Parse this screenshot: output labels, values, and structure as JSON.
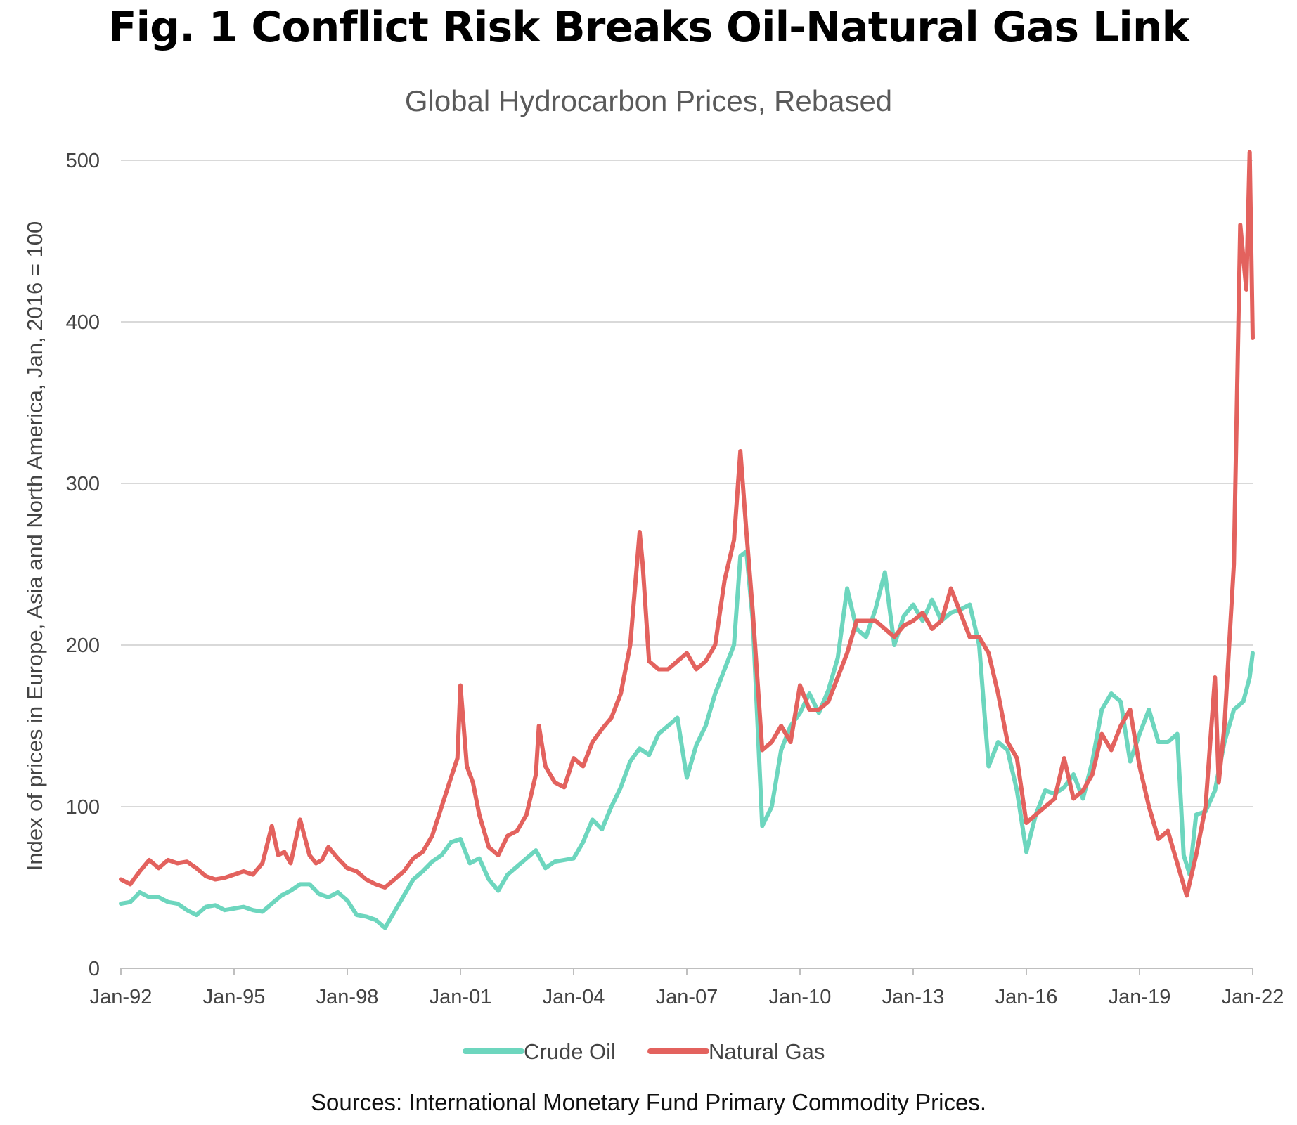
{
  "figure": {
    "title": "Fig. 1 Conflict Risk Breaks Oil-Natural Gas Link",
    "subtitle": "Global Hydrocarbon Prices, Rebased",
    "sources": "Sources: International Monetary Fund Primary Commodity Prices."
  },
  "colors": {
    "crude_oil": "#6dd6be",
    "natural_gas": "#e3625e",
    "grid": "#d9d9d9",
    "axis": "#bfbfbf",
    "text": "#444444"
  },
  "chart_data": {
    "type": "line",
    "title": "Fig. 1 Conflict Risk Breaks Oil-Natural Gas Link",
    "subtitle": "Global Hydrocarbon Prices, Rebased",
    "xlabel": "",
    "ylabel": "Index of prices in Europe, Asia and North America, Jan, 2016 = 100",
    "ylim": [
      0,
      500
    ],
    "xlim": [
      1992.0,
      2022.0
    ],
    "y_ticks": [
      "0",
      "100",
      "200",
      "300",
      "400",
      "500"
    ],
    "x_ticks": [
      "Jan-92",
      "Jan-95",
      "Jan-98",
      "Jan-01",
      "Jan-04",
      "Jan-07",
      "Jan-10",
      "Jan-13",
      "Jan-16",
      "Jan-19",
      "Jan-22"
    ],
    "grid": "horizontal",
    "legend": "bottom",
    "x_unit": "decimal year",
    "series": [
      {
        "name": "Crude Oil",
        "color": "#6dd6be",
        "x": [
          1992.0,
          1992.25,
          1992.5,
          1992.75,
          1993.0,
          1993.25,
          1993.5,
          1993.75,
          1994.0,
          1994.25,
          1994.5,
          1994.75,
          1995.0,
          1995.25,
          1995.5,
          1995.75,
          1996.0,
          1996.25,
          1996.5,
          1996.75,
          1997.0,
          1997.25,
          1997.5,
          1997.75,
          1998.0,
          1998.25,
          1998.5,
          1998.75,
          1999.0,
          1999.25,
          1999.5,
          1999.75,
          2000.0,
          2000.25,
          2000.5,
          2000.75,
          2001.0,
          2001.25,
          2001.5,
          2001.75,
          2002.0,
          2002.25,
          2002.5,
          2002.75,
          2003.0,
          2003.25,
          2003.5,
          2003.75,
          2004.0,
          2004.25,
          2004.5,
          2004.75,
          2005.0,
          2005.25,
          2005.5,
          2005.75,
          2006.0,
          2006.25,
          2006.5,
          2006.75,
          2007.0,
          2007.25,
          2007.5,
          2007.75,
          2008.0,
          2008.25,
          2008.42,
          2008.58,
          2008.75,
          2009.0,
          2009.25,
          2009.5,
          2009.75,
          2010.0,
          2010.25,
          2010.5,
          2010.75,
          2011.0,
          2011.25,
          2011.5,
          2011.75,
          2012.0,
          2012.25,
          2012.5,
          2012.75,
          2013.0,
          2013.25,
          2013.5,
          2013.75,
          2014.0,
          2014.25,
          2014.5,
          2014.75,
          2015.0,
          2015.25,
          2015.5,
          2015.75,
          2016.0,
          2016.25,
          2016.5,
          2016.75,
          2017.0,
          2017.25,
          2017.5,
          2017.75,
          2018.0,
          2018.25,
          2018.5,
          2018.75,
          2019.0,
          2019.25,
          2019.5,
          2019.75,
          2020.0,
          2020.17,
          2020.33,
          2020.5,
          2020.75,
          2021.0,
          2021.25,
          2021.5,
          2021.75,
          2021.92,
          2022.0
        ],
        "values": [
          40,
          41,
          47,
          44,
          44,
          41,
          40,
          36,
          33,
          38,
          39,
          36,
          37,
          38,
          36,
          35,
          40,
          45,
          48,
          52,
          52,
          46,
          44,
          47,
          42,
          33,
          32,
          30,
          25,
          35,
          45,
          55,
          60,
          66,
          70,
          78,
          80,
          65,
          68,
          55,
          48,
          58,
          63,
          68,
          73,
          62,
          66,
          67,
          68,
          78,
          92,
          86,
          100,
          112,
          128,
          136,
          132,
          145,
          150,
          155,
          118,
          138,
          150,
          170,
          185,
          200,
          255,
          258,
          215,
          88,
          100,
          135,
          150,
          158,
          170,
          158,
          172,
          192,
          235,
          210,
          205,
          222,
          245,
          200,
          218,
          225,
          215,
          228,
          215,
          220,
          222,
          225,
          200,
          125,
          140,
          135,
          110,
          72,
          95,
          110,
          108,
          112,
          120,
          105,
          128,
          160,
          170,
          165,
          128,
          145,
          160,
          140,
          140,
          145,
          70,
          58,
          95,
          97,
          110,
          140,
          160,
          165,
          180,
          195
        ]
      },
      {
        "name": "Natural Gas",
        "color": "#e3625e",
        "x": [
          1992.0,
          1992.25,
          1992.5,
          1992.75,
          1993.0,
          1993.25,
          1993.5,
          1993.75,
          1994.0,
          1994.25,
          1994.5,
          1994.75,
          1995.0,
          1995.25,
          1995.5,
          1995.75,
          1996.0,
          1996.17,
          1996.33,
          1996.5,
          1996.75,
          1997.0,
          1997.17,
          1997.33,
          1997.5,
          1997.75,
          1998.0,
          1998.25,
          1998.5,
          1998.75,
          1999.0,
          1999.25,
          1999.5,
          1999.75,
          2000.0,
          2000.25,
          2000.5,
          2000.75,
          2000.92,
          2001.0,
          2001.17,
          2001.33,
          2001.5,
          2001.75,
          2002.0,
          2002.25,
          2002.5,
          2002.75,
          2003.0,
          2003.08,
          2003.25,
          2003.5,
          2003.75,
          2004.0,
          2004.25,
          2004.5,
          2004.75,
          2005.0,
          2005.25,
          2005.5,
          2005.75,
          2005.83,
          2006.0,
          2006.25,
          2006.5,
          2006.75,
          2007.0,
          2007.25,
          2007.5,
          2007.75,
          2008.0,
          2008.25,
          2008.42,
          2008.58,
          2008.75,
          2009.0,
          2009.25,
          2009.5,
          2009.75,
          2010.0,
          2010.25,
          2010.5,
          2010.75,
          2011.0,
          2011.25,
          2011.5,
          2011.75,
          2012.0,
          2012.25,
          2012.5,
          2012.75,
          2013.0,
          2013.25,
          2013.5,
          2013.75,
          2014.0,
          2014.25,
          2014.5,
          2014.75,
          2015.0,
          2015.25,
          2015.5,
          2015.75,
          2016.0,
          2016.25,
          2016.5,
          2016.75,
          2017.0,
          2017.25,
          2017.5,
          2017.75,
          2018.0,
          2018.25,
          2018.5,
          2018.75,
          2019.0,
          2019.25,
          2019.5,
          2019.75,
          2020.0,
          2020.25,
          2020.5,
          2020.75,
          2021.0,
          2021.1,
          2021.25,
          2021.5,
          2021.67,
          2021.83,
          2021.92,
          2022.0
        ],
        "values": [
          55,
          52,
          60,
          67,
          62,
          67,
          65,
          66,
          62,
          57,
          55,
          56,
          58,
          60,
          58,
          65,
          88,
          70,
          72,
          65,
          92,
          70,
          65,
          67,
          75,
          68,
          62,
          60,
          55,
          52,
          50,
          55,
          60,
          68,
          72,
          82,
          100,
          118,
          130,
          175,
          125,
          115,
          95,
          75,
          70,
          82,
          85,
          95,
          120,
          150,
          125,
          115,
          112,
          130,
          125,
          140,
          148,
          155,
          170,
          200,
          270,
          250,
          190,
          185,
          185,
          190,
          195,
          185,
          190,
          200,
          240,
          265,
          320,
          270,
          220,
          135,
          140,
          150,
          140,
          175,
          160,
          160,
          165,
          180,
          195,
          215,
          215,
          215,
          210,
          205,
          212,
          215,
          220,
          210,
          215,
          235,
          220,
          205,
          205,
          195,
          170,
          140,
          130,
          90,
          95,
          100,
          105,
          130,
          105,
          110,
          120,
          145,
          135,
          150,
          160,
          125,
          100,
          80,
          85,
          65,
          45,
          70,
          100,
          180,
          115,
          150,
          250,
          460,
          420,
          505,
          390
        ]
      }
    ]
  }
}
